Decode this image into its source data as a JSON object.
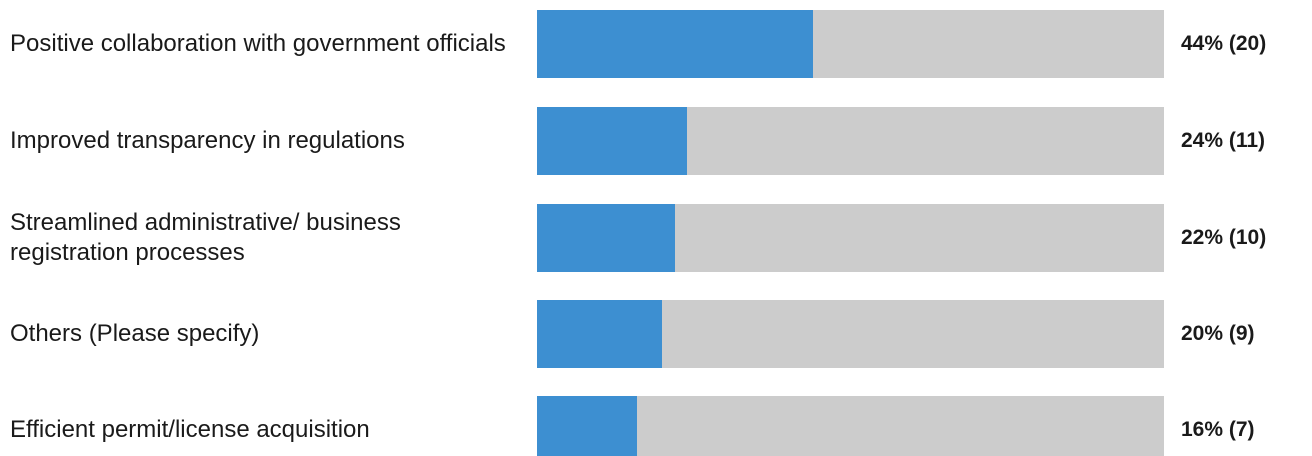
{
  "chart_data": {
    "type": "bar",
    "orientation": "horizontal",
    "categories": [
      "Positive collaboration with government officials",
      "Improved transparency in regulations",
      "Streamlined administrative/ business registration processes",
      "Others (Please specify)",
      "Efficient permit/license acquisition"
    ],
    "values": [
      44,
      24,
      22,
      20,
      16
    ],
    "counts": [
      20,
      11,
      10,
      9,
      7
    ],
    "value_labels": [
      "44% (20)",
      "24% (11)",
      "22% (10)",
      "20% (9)",
      "16% (7)"
    ],
    "xlim": [
      0,
      100
    ],
    "grid": false,
    "legend": "none",
    "colors": {
      "fill": "#3d8fd1",
      "track": "#cccccc",
      "text": "#1a1a1a"
    }
  }
}
